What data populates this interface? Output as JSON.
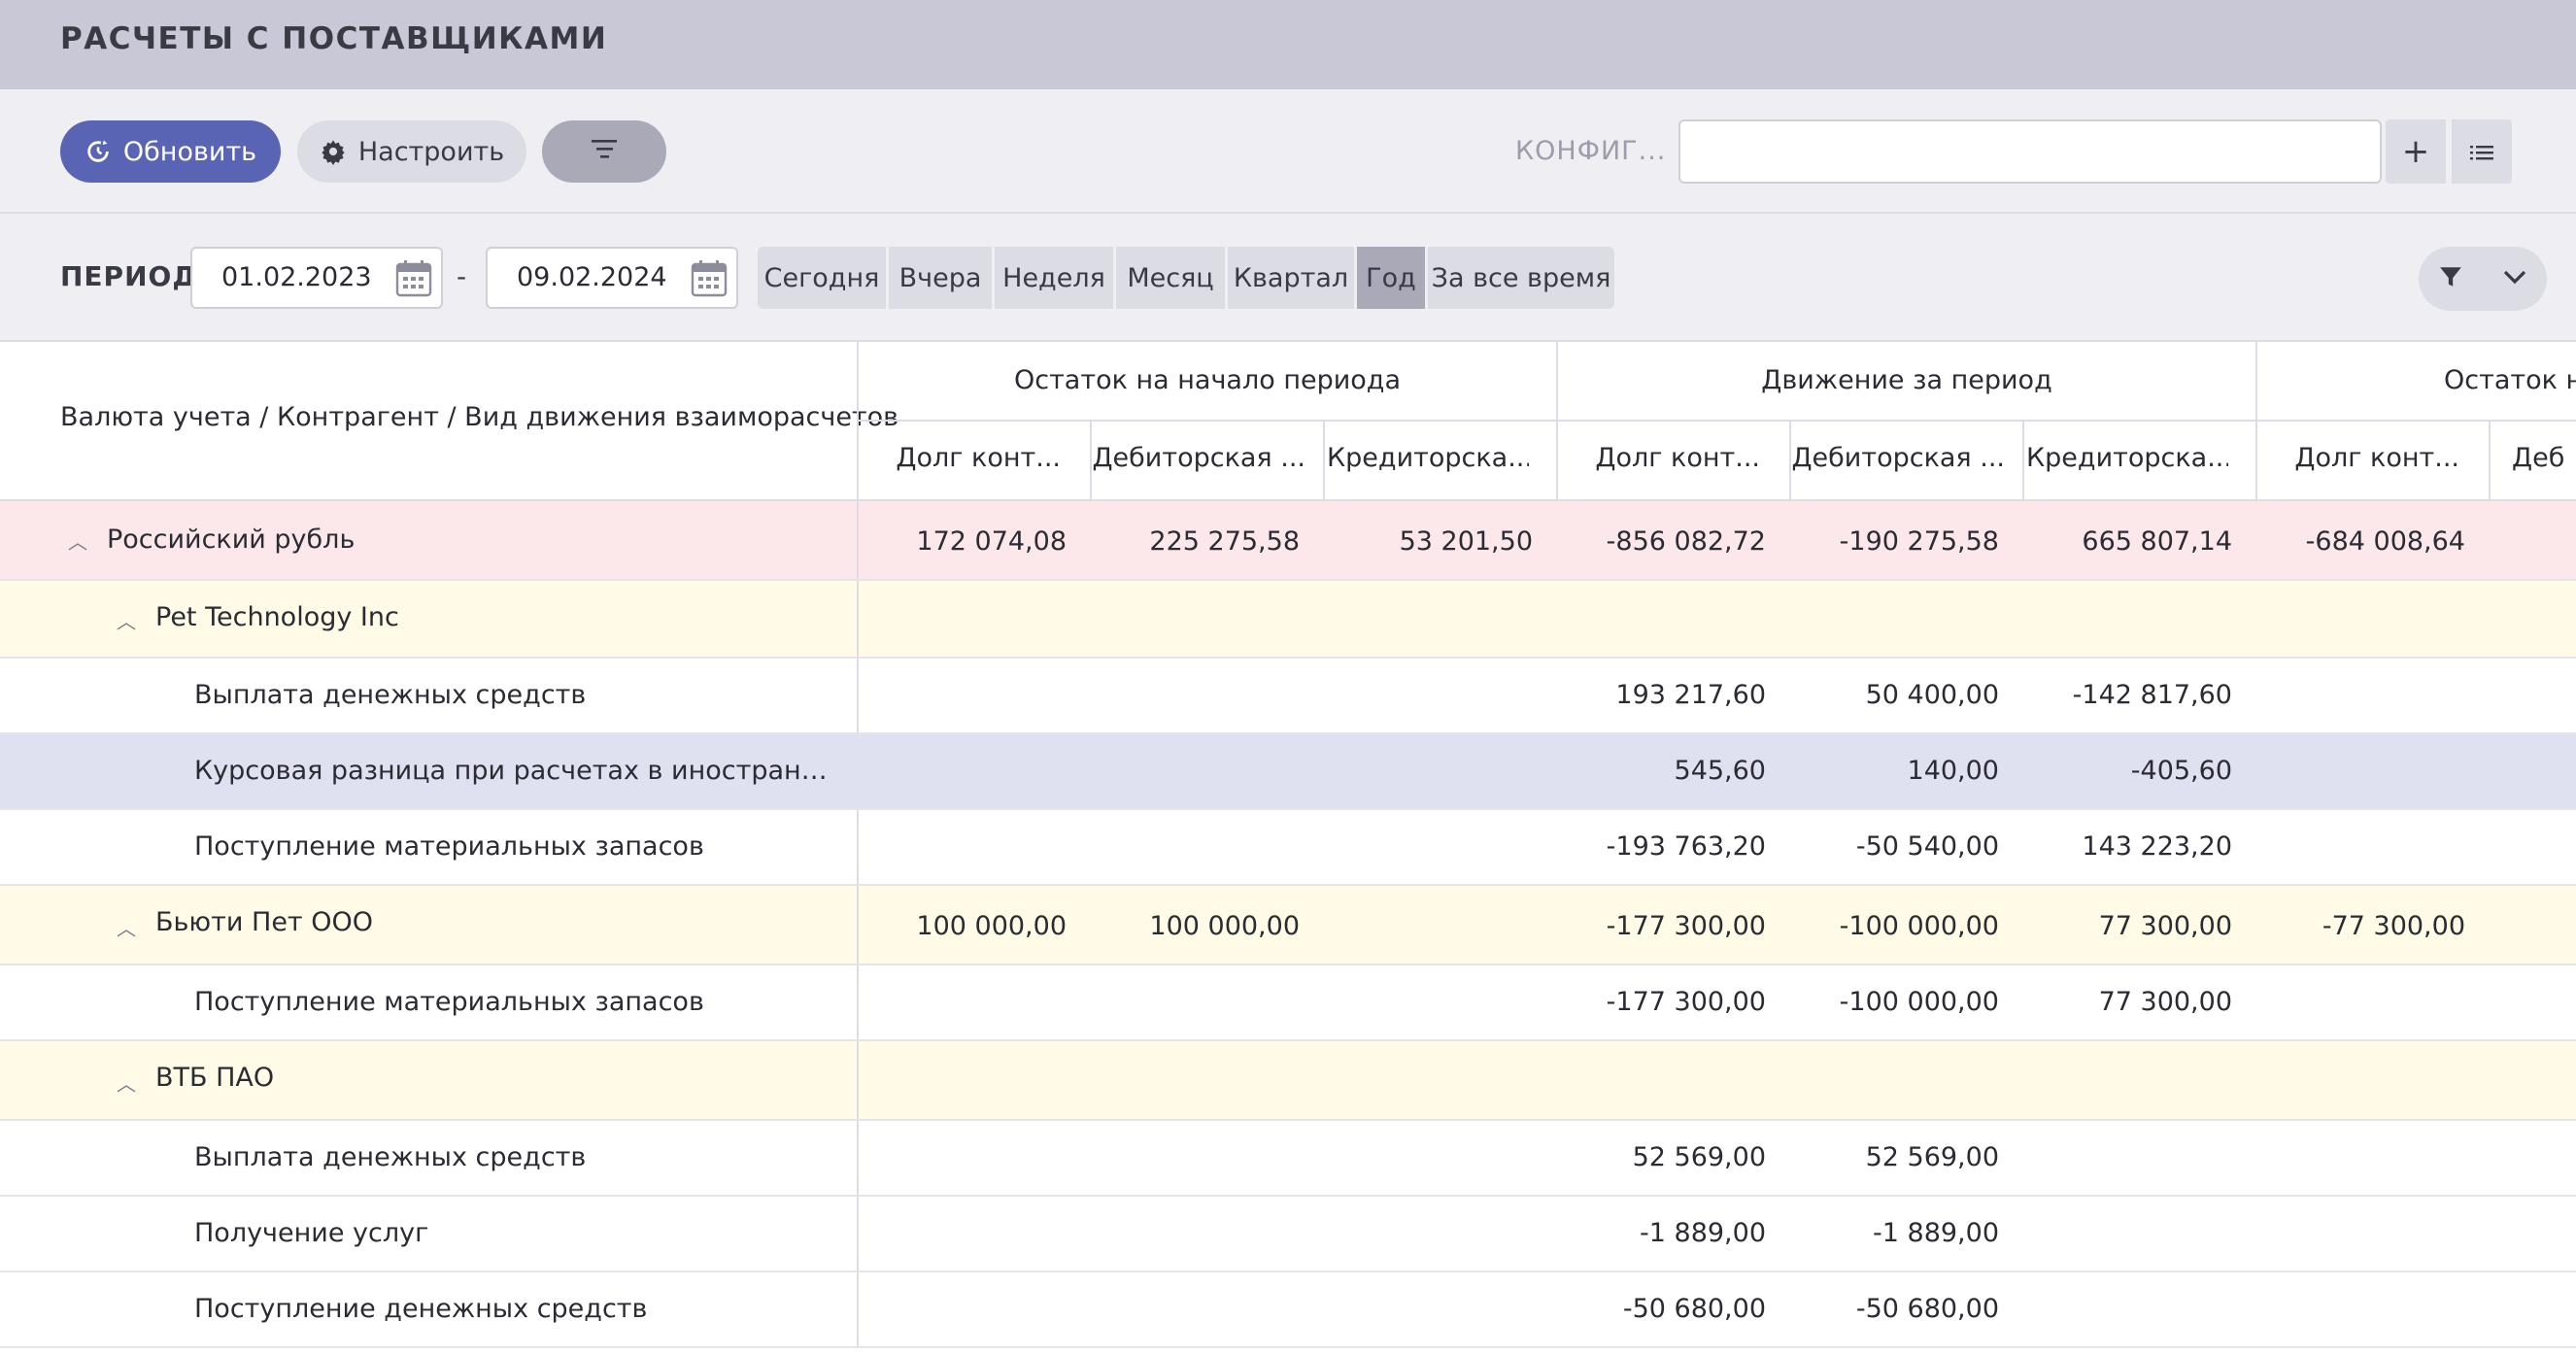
{
  "title": "РАСЧЕТЫ С ПОСТАВЩИКАМИ",
  "toolbar": {
    "refresh_label": "Обновить",
    "settings_label": "Настроить",
    "config_label": "КОНФИГ...",
    "config_value": "",
    "add_symbol": "+"
  },
  "period": {
    "label": "ПЕРИОД",
    "from": "01.02.2023",
    "dash": "-",
    "to": "09.02.2024",
    "presets": [
      "Сегодня",
      "Вчера",
      "Неделя",
      "Месяц",
      "Квартал",
      "Год",
      "За все время"
    ],
    "active": "Год"
  },
  "table": {
    "row_header": "Валюта учета / Контрагент / Вид движения взаиморасчетов",
    "groups": [
      "Остаток на начало периода",
      "Движение за период",
      "Остаток н"
    ],
    "columns": [
      "Долг конт...",
      "Дебиторская ...",
      "Кредиторска...",
      "Долг конт...",
      "Дебиторская ...",
      "Кредиторска...",
      "Долг конт...",
      "Деб"
    ],
    "rows": [
      {
        "label": "Российский рубль",
        "values": [
          "172 074,08",
          "225 275,58",
          "53 201,50",
          "-856 082,72",
          "-190 275,58",
          "665 807,14",
          "-684 008,64"
        ]
      },
      {
        "label": "Pet Technology Inc",
        "values": [
          "",
          "",
          "",
          "",
          "",
          "",
          ""
        ]
      },
      {
        "label": "Выплата денежных средств",
        "values": [
          "",
          "",
          "",
          "193 217,60",
          "50 400,00",
          "-142 817,60",
          ""
        ]
      },
      {
        "label": "Курсовая разница при расчетах в иностранной вал...",
        "values": [
          "",
          "",
          "",
          "545,60",
          "140,00",
          "-405,60",
          ""
        ]
      },
      {
        "label": "Поступление материальных запасов",
        "values": [
          "",
          "",
          "",
          "-193 763,20",
          "-50 540,00",
          "143 223,20",
          ""
        ]
      },
      {
        "label": "Бьюти Пет ООО",
        "values": [
          "100 000,00",
          "100 000,00",
          "",
          "-177 300,00",
          "-100 000,00",
          "77 300,00",
          "-77 300,00"
        ]
      },
      {
        "label": "Поступление материальных запасов",
        "values": [
          "",
          "",
          "",
          "-177 300,00",
          "-100 000,00",
          "77 300,00",
          ""
        ]
      },
      {
        "label": "ВТБ ПАО",
        "values": [
          "",
          "",
          "",
          "",
          "",
          "",
          ""
        ]
      },
      {
        "label": "Выплата денежных средств",
        "values": [
          "",
          "",
          "",
          "52 569,00",
          "52 569,00",
          "",
          ""
        ]
      },
      {
        "label": "Получение услуг",
        "values": [
          "",
          "",
          "",
          "-1 889,00",
          "-1 889,00",
          "",
          ""
        ]
      },
      {
        "label": "Поступление денежных средств",
        "values": [
          "",
          "",
          "",
          "-50 680,00",
          "-50 680,00",
          "",
          ""
        ]
      }
    ]
  },
  "colors": {
    "accent": "#5a64b4",
    "currency_row": "#fce8ea",
    "group_row": "#fffbe6",
    "selected_row": "#dfe1f0"
  }
}
